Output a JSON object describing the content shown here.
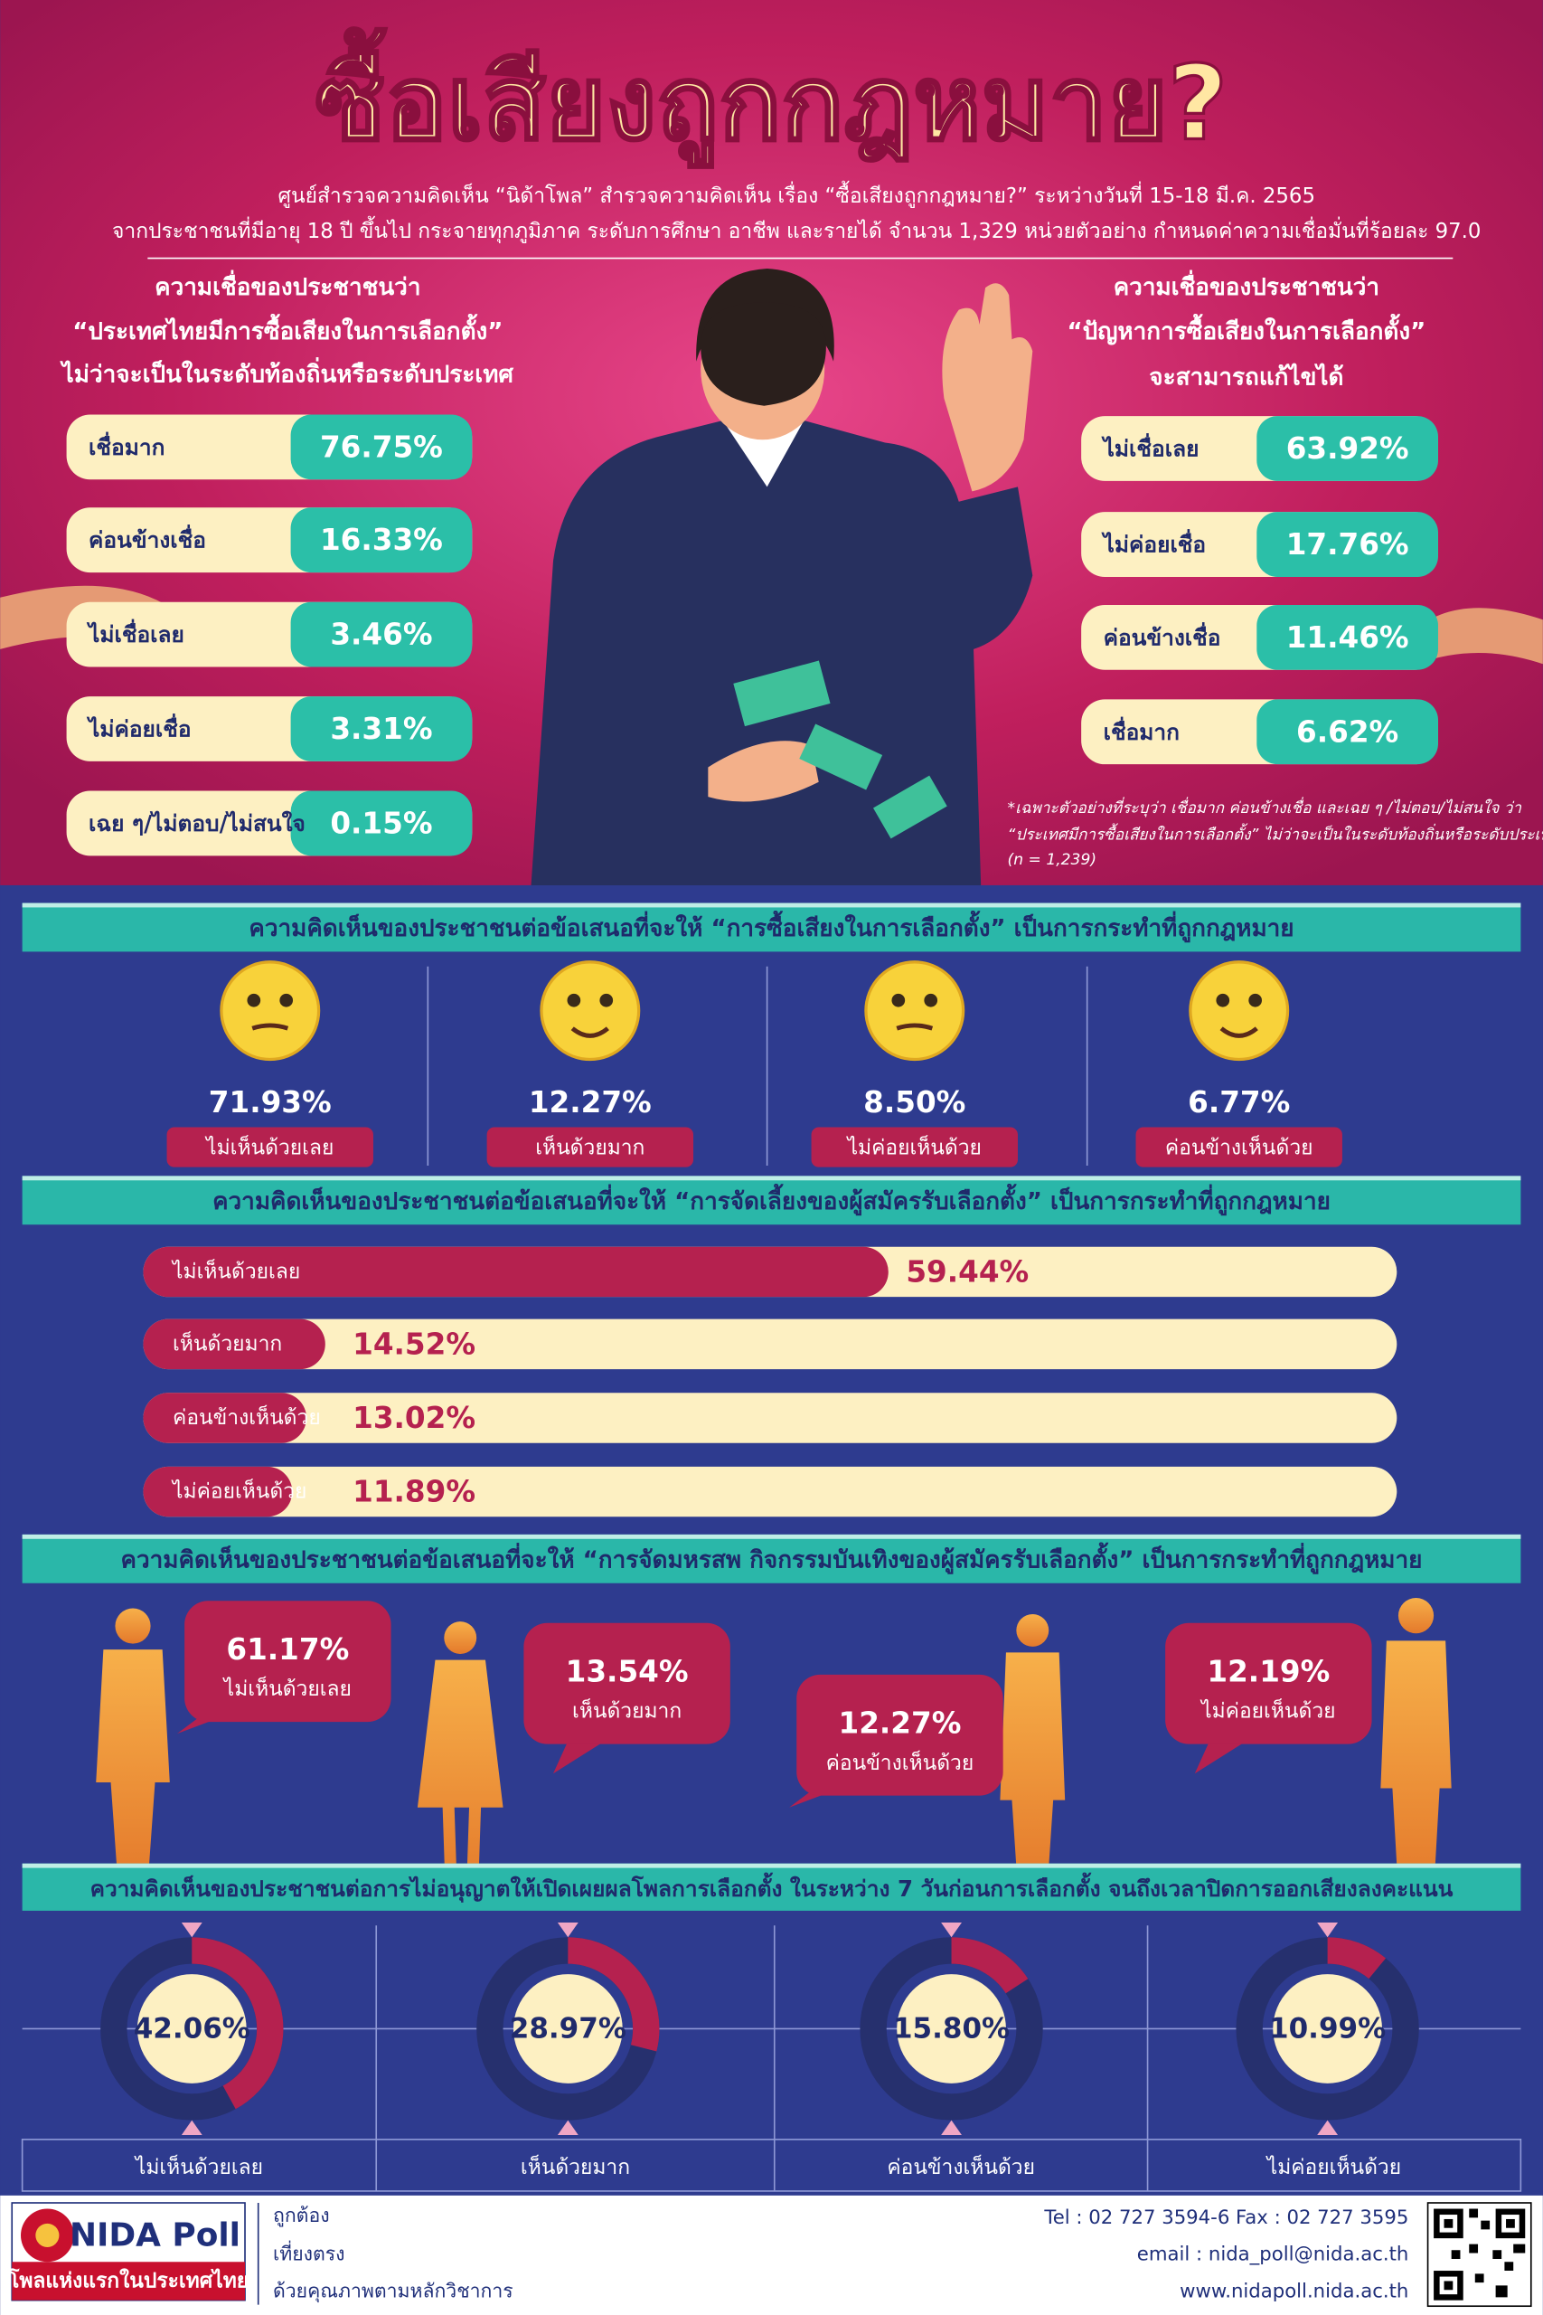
{
  "header": {
    "title": "ซื้อเสียงถูกกฎหมาย?",
    "subtitle": [
      "ศูนย์สำรวจความคิดเห็น “นิด้าโพล” สำรวจความคิดเห็น เรื่อง “ซื้อเสียงถูกกฎหมาย?” ระหว่างวันที่ 15-18 มี.ค. 2565",
      "จากประชาชนที่มีอายุ 18 ปี ขึ้นไป กระจายทุกภูมิภาค ระดับการศึกษา อาชีพ และรายได้ จำนวน 1,329 หน่วยตัวอย่าง กำหนดค่าความเชื่อมั่นที่ร้อยละ 97.0"
    ]
  },
  "chart_data": [
    {
      "type": "list",
      "title": [
        "ความเชื่อของประชาชนว่า",
        "“ประเทศไทยมีการซื้อเสียงในการเลือกตั้ง”",
        "ไม่ว่าจะเป็นในระดับท้องถิ่นหรือระดับประเทศ"
      ],
      "categories": [
        "เชื่อมาก",
        "ค่อนข้างเชื่อ",
        "ไม่เชื่อเลย",
        "ไม่ค่อยเชื่อ",
        "เฉย ๆ/ไม่ตอบ/ไม่สนใจ"
      ],
      "values": [
        76.75,
        16.33,
        3.46,
        3.31,
        0.15
      ],
      "value_labels": [
        "76.75%",
        "16.33%",
        "3.46%",
        "3.31%",
        "0.15%"
      ],
      "color": "#2bbfa8"
    },
    {
      "type": "list",
      "title": [
        "ความเชื่อของประชาชนว่า",
        "“ปัญหาการซื้อเสียงในการเลือกตั้ง”",
        "จะสามารถแก้ไขได้"
      ],
      "categories": [
        "ไม่เชื่อเลย",
        "ไม่ค่อยเชื่อ",
        "ค่อนข้างเชื่อ",
        "เชื่อมาก"
      ],
      "values": [
        63.92,
        17.76,
        11.46,
        6.62
      ],
      "value_labels": [
        "63.92%",
        "17.76%",
        "11.46%",
        "6.62%"
      ],
      "color": "#2bbfa8",
      "note": [
        "*เฉพาะตัวอย่างที่ระบุว่า เชื่อมาก ค่อนข้างเชื่อ และเฉย ๆ /ไม่ตอบ/ไม่สนใจ ว่า",
        "“ประเทศมีการซื้อเสียงในการเลือกตั้ง” ไม่ว่าจะเป็นในระดับท้องถิ่นหรือระดับประเทศ",
        "(n = 1,239)"
      ]
    },
    {
      "type": "icon",
      "title": "ความคิดเห็นของประชาชนต่อข้อเสนอที่จะให้ “การซื้อเสียงในการเลือกตั้ง” เป็นการกระทำที่ถูกกฎหมาย",
      "categories": [
        "ไม่เห็นด้วยเลย",
        "เห็นด้วยมาก",
        "ไม่ค่อยเห็นด้วย",
        "ค่อนข้างเห็นด้วย"
      ],
      "values": [
        71.93,
        12.27,
        8.5,
        6.77
      ],
      "value_labels": [
        "71.93%",
        "12.27%",
        "8.50%",
        "6.77%"
      ],
      "color": "#f8d23a"
    },
    {
      "type": "bar",
      "title": "ความคิดเห็นของประชาชนต่อข้อเสนอที่จะให้ “การจัดเลี้ยงของผู้สมัครรับเลือกตั้ง” เป็นการกระทำที่ถูกกฎหมาย",
      "categories": [
        "ไม่เห็นด้วยเลย",
        "เห็นด้วยมาก",
        "ค่อนข้างเห็นด้วย",
        "ไม่ค่อยเห็นด้วย"
      ],
      "values": [
        59.44,
        14.52,
        13.02,
        11.89
      ],
      "value_labels": [
        "59.44%",
        "14.52%",
        "13.02%",
        "11.89%"
      ],
      "xlim": [
        0,
        100
      ],
      "color": "#b5214f"
    },
    {
      "type": "callout",
      "title": "ความคิดเห็นของประชาชนต่อข้อเสนอที่จะให้ “การจัดมหรสพ กิจกรรมบันเทิงของผู้สมัครรับเลือกตั้ง” เป็นการกระทำที่ถูกกฎหมาย",
      "categories": [
        "ไม่เห็นด้วยเลย",
        "เห็นด้วยมาก",
        "ค่อนข้างเห็นด้วย",
        "ไม่ค่อยเห็นด้วย"
      ],
      "values": [
        61.17,
        13.54,
        12.27,
        12.19
      ],
      "value_labels": [
        "61.17%",
        "13.54%",
        "12.27%",
        "12.19%"
      ],
      "color": "#b5214f"
    },
    {
      "type": "donut",
      "title": "ความคิดเห็นของประชาชนต่อการไม่อนุญาตให้เปิดเผยผลโพลการเลือกตั้ง ในระหว่าง 7 วันก่อนการเลือกตั้ง จนถึงเวลาปิดการออกเสียงลงคะแนน",
      "categories": [
        "ไม่เห็นด้วยเลย",
        "เห็นด้วยมาก",
        "ค่อนข้างเห็นด้วย",
        "ไม่ค่อยเห็นด้วย"
      ],
      "values": [
        42.06,
        28.97,
        15.8,
        10.99
      ],
      "value_labels": [
        "42.06%",
        "28.97%",
        "15.80%",
        "10.99%"
      ],
      "ylim": [
        0,
        100
      ],
      "color": "#b5214f"
    }
  ],
  "footer": {
    "brand": "NIDA Poll",
    "tagline": "โพลแห่งแรกในประเทศไทย",
    "mottos": [
      "ถูกต้อง",
      "เที่ยงตรง",
      "ด้วยคุณภาพตามหลักวิชาการ"
    ],
    "contact": [
      "Tel : 02 727 3594-6 Fax : 02 727 3595",
      "email : nida_poll@nida.ac.th",
      "www.nidapoll.nida.ac.th"
    ]
  }
}
